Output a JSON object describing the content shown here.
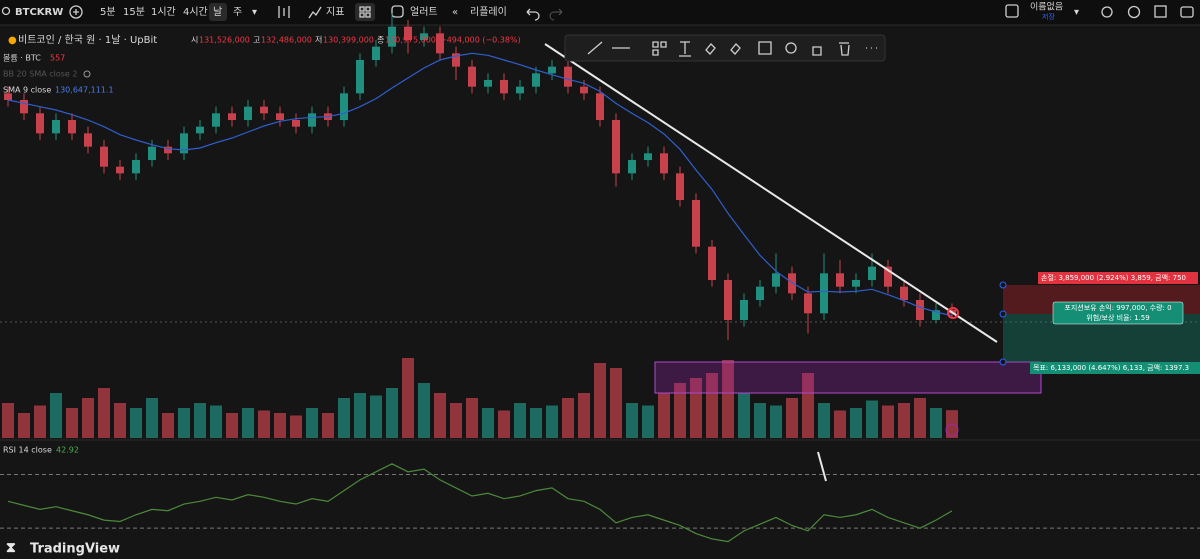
{
  "toolbar": {
    "symbol": "BTCKRW",
    "intervals": [
      "5분",
      "15분",
      "1시간",
      "4시간",
      "날",
      "주"
    ],
    "indicators": "지표",
    "alert": "얼러트",
    "replay": "리플레이",
    "layout_name": "이름없음",
    "save": "저장"
  },
  "legend": {
    "title": "비트코인 / 한국 원 · 1날 · UpBit",
    "open_label": "시",
    "open": "131,526,000",
    "high_label": "고",
    "high": "132,486,000",
    "low_label": "저",
    "low": "130,399,000",
    "close_label": "종",
    "close": "130,975,000",
    "change": "−494,000 (−0.38%)",
    "volume_name": "볼륨 · BTC",
    "volume_value": "557",
    "bb_name": "BB 20 SMA close 2",
    "sma_name": "SMA 9 close",
    "sma_value": "130,647,111.1",
    "rsi_name": "RSI 14 close",
    "rsi_value": "42.92"
  },
  "position": {
    "stop": "손절: 3,859,000 (2.924%) 3,859, 금액: 750",
    "pnl": "포지션보유 손익: 997,000, 수량: 0",
    "ratio": "위험/보상 비율: 1.59",
    "target": "목표: 6,133,000 (4.647%) 6,133, 금액: 1397.3"
  },
  "brand": "TradingView",
  "chart_data": {
    "type": "candlestick",
    "up_color": "#1f8f80",
    "down_color": "#c8414c",
    "ylim": [
      124,
      175
    ],
    "candles": [
      [
        164,
        165,
        162,
        163
      ],
      [
        163,
        164,
        160,
        161
      ],
      [
        161,
        162,
        157,
        158
      ],
      [
        158,
        161,
        157,
        160
      ],
      [
        160,
        161,
        157,
        158
      ],
      [
        158,
        159,
        155,
        156
      ],
      [
        156,
        157,
        152,
        153
      ],
      [
        153,
        154,
        151,
        152
      ],
      [
        152,
        155,
        151,
        154
      ],
      [
        154,
        157,
        153,
        156
      ],
      [
        156,
        157,
        154,
        155
      ],
      [
        155,
        159,
        154,
        158
      ],
      [
        158,
        160,
        157,
        159
      ],
      [
        159,
        162,
        158,
        161
      ],
      [
        161,
        162,
        159,
        160
      ],
      [
        160,
        163,
        159,
        162
      ],
      [
        162,
        163,
        160,
        161
      ],
      [
        161,
        162,
        159,
        160
      ],
      [
        160,
        161,
        158,
        159
      ],
      [
        159,
        162,
        158,
        161
      ],
      [
        161,
        162,
        159,
        160
      ],
      [
        160,
        165,
        159,
        164
      ],
      [
        164,
        170,
        163,
        169
      ],
      [
        169,
        172,
        168,
        171
      ],
      [
        171,
        176,
        170,
        174
      ],
      [
        174,
        175,
        170,
        172
      ],
      [
        172,
        174,
        171,
        173
      ],
      [
        173,
        174,
        169,
        170
      ],
      [
        170,
        171,
        166,
        168
      ],
      [
        168,
        169,
        164,
        165
      ],
      [
        165,
        167,
        164,
        166
      ],
      [
        166,
        167,
        163,
        164
      ],
      [
        164,
        166,
        163,
        165
      ],
      [
        165,
        168,
        164,
        167
      ],
      [
        167,
        169,
        166,
        168
      ],
      [
        168,
        169,
        164,
        165
      ],
      [
        165,
        166,
        163,
        164
      ],
      [
        164,
        165,
        159,
        160
      ],
      [
        160,
        161,
        150,
        152
      ],
      [
        152,
        155,
        151,
        154
      ],
      [
        154,
        156,
        153,
        155
      ],
      [
        155,
        156,
        151,
        152
      ],
      [
        152,
        153,
        147,
        148
      ],
      [
        148,
        149,
        140,
        141
      ],
      [
        141,
        142,
        135,
        136
      ],
      [
        136,
        137,
        127,
        130
      ],
      [
        130,
        134,
        129,
        133
      ],
      [
        133,
        136,
        132,
        135
      ],
      [
        135,
        140,
        134,
        137
      ],
      [
        137,
        138,
        133,
        134
      ],
      [
        134,
        135,
        128,
        131
      ],
      [
        131,
        140,
        130,
        137
      ],
      [
        137,
        139,
        134,
        135
      ],
      [
        135,
        137,
        134,
        136
      ],
      [
        136,
        140,
        135,
        138
      ],
      [
        138,
        139,
        134,
        135
      ],
      [
        135,
        136,
        132,
        133
      ],
      [
        133,
        134,
        129,
        130
      ],
      [
        130,
        132.5,
        129.5,
        131.469
      ],
      [
        131.526,
        132.486,
        130.399,
        130.975
      ]
    ],
    "sma": {
      "color": "#2f5fd0",
      "values": [
        163,
        162.5,
        162,
        161.5,
        160.8,
        160,
        159,
        157.8,
        157,
        156.3,
        155.7,
        155.5,
        155.8,
        156.6,
        157.3,
        158.2,
        159.1,
        159.8,
        160.2,
        160.4,
        160.5,
        161,
        162,
        163.2,
        164.8,
        166.3,
        167.8,
        169,
        169.6,
        170,
        169.7,
        169,
        168.3,
        167.5,
        166.8,
        166.1,
        165.5,
        164.3,
        162.5,
        161,
        159.6,
        157.9,
        155.6,
        152.5,
        149.6,
        146,
        142.8,
        139.7,
        137.3,
        135.6,
        134.2,
        134.3,
        134.2,
        134.3,
        134.6,
        133.8,
        132.9,
        131.9,
        131.2,
        130.6471111
      ]
    },
    "volume": {
      "ylim": [
        0,
        2200
      ],
      "values": [
        700,
        500,
        650,
        900,
        600,
        800,
        1000,
        700,
        600,
        800,
        500,
        600,
        700,
        650,
        500,
        600,
        550,
        500,
        450,
        600,
        500,
        800,
        900,
        850,
        1000,
        1600,
        1100,
        900,
        700,
        800,
        600,
        550,
        700,
        600,
        650,
        800,
        900,
        1500,
        1400,
        700,
        650,
        900,
        1100,
        1200,
        1300,
        1560,
        900,
        700,
        650,
        800,
        1300,
        700,
        550,
        600,
        750,
        650,
        700,
        800,
        600,
        557
      ]
    },
    "rsi": {
      "color": "#4c8a3a",
      "ylim": [
        10,
        92
      ],
      "levels": [
        70,
        30
      ],
      "values": [
        50,
        47,
        44,
        46,
        43,
        40,
        36,
        35,
        40,
        44,
        43,
        48,
        50,
        53,
        51,
        55,
        53,
        50,
        48,
        52,
        50,
        58,
        66,
        72,
        78,
        72,
        74,
        66,
        60,
        54,
        56,
        52,
        54,
        58,
        60,
        52,
        50,
        44,
        34,
        38,
        40,
        36,
        32,
        26,
        22,
        20,
        28,
        33,
        38,
        32,
        28,
        40,
        38,
        40,
        44,
        38,
        34,
        30,
        36,
        42.92
      ]
    }
  }
}
